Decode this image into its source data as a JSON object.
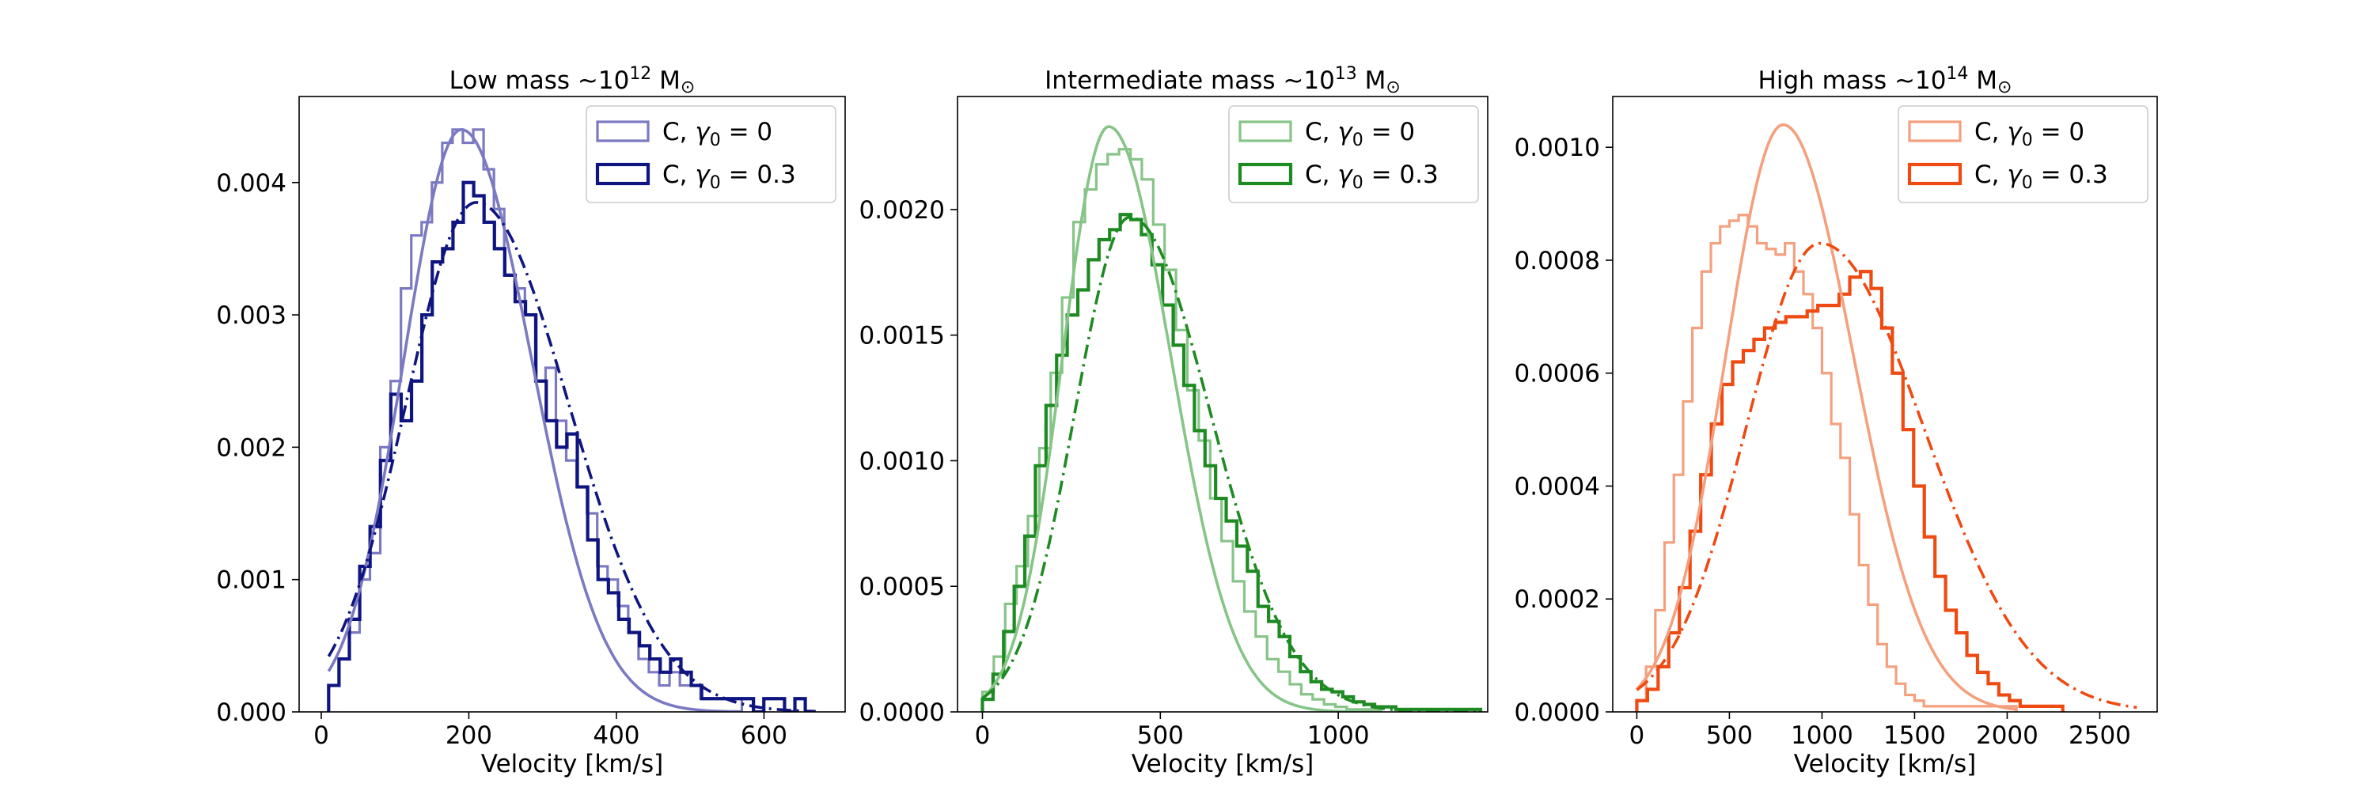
{
  "chart_data": [
    {
      "type": "histogram",
      "title": "Low mass",
      "title_mass": "∼10",
      "title_exp": "12",
      "title_unit": " M",
      "title_sun": "⊙",
      "xlabel": "Velocity [km/s]",
      "ylabel": "",
      "xlim": [
        -30,
        710
      ],
      "ylim": [
        0,
        0.00465
      ],
      "xticks": [
        0,
        200,
        400,
        600
      ],
      "xtick_labels": [
        "0",
        "200",
        "400",
        "600"
      ],
      "yticks": [
        0,
        0.001,
        0.002,
        0.003,
        0.004
      ],
      "ytick_labels": [
        "0.000",
        "0.001",
        "0.002",
        "0.003",
        "0.004"
      ],
      "legend": [
        {
          "label_prefix": "C, ",
          "label_math": "γ",
          "label_sub": "0",
          "label_suffix": " = 0",
          "color": "#7b79c1"
        },
        {
          "label_prefix": "C, ",
          "label_math": "γ",
          "label_sub": "0",
          "label_suffix": " = 0.3",
          "color": "#0f1580"
        }
      ],
      "series": [
        {
          "name": "C, γ0 = 0",
          "color": "#7b79c1",
          "hist_edges_range": [
            10,
            570
          ],
          "hist_values": [
            0.0002,
            0.0004,
            0.0006,
            0.001,
            0.0012,
            0.002,
            0.0025,
            0.0032,
            0.0036,
            0.0037,
            0.004,
            0.0043,
            0.0044,
            0.0043,
            0.0044,
            0.0041,
            0.0038,
            0.0033,
            0.0032,
            0.003,
            0.0025,
            0.0026,
            0.0022,
            0.0019,
            0.0017,
            0.0015,
            0.0011,
            0.001,
            0.0008,
            0.0006,
            0.0004,
            0.0003,
            0.0002,
            0.0003,
            0.0002,
            0.0002,
            0.0001,
            0.0001,
            0.0001,
            0.0001
          ],
          "fit": {
            "style": "solid",
            "peak_x": 190,
            "peak_y": 0.0044,
            "sigma_left": 78,
            "sigma_right": 95,
            "x_range": [
              10,
              570
            ]
          }
        },
        {
          "name": "C, γ0 = 0.3",
          "color": "#0f1580",
          "hist_edges_range": [
            10,
            670
          ],
          "hist_values": [
            0.0002,
            0.0004,
            0.0007,
            0.0011,
            0.0014,
            0.0019,
            0.0024,
            0.0022,
            0.0025,
            0.003,
            0.0034,
            0.0035,
            0.0037,
            0.004,
            0.0039,
            0.0037,
            0.0035,
            0.0033,
            0.0031,
            0.003,
            0.0025,
            0.0022,
            0.002,
            0.0021,
            0.0017,
            0.0013,
            0.001,
            0.0009,
            0.0007,
            0.0006,
            0.0005,
            0.0004,
            0.0003,
            0.0004,
            0.0003,
            0.0002,
            0.0001,
            0.0001,
            0.0001,
            0.0001,
            0.0001,
            0.0,
            0.0001,
            0.0001,
            0.0,
            0.0001,
            0.0
          ],
          "fit": {
            "style": "dashdot",
            "peak_x": 210,
            "peak_y": 0.00385,
            "sigma_left": 95,
            "sigma_right": 125,
            "x_range": [
              10,
              670
            ]
          }
        }
      ]
    },
    {
      "type": "histogram",
      "title": "Intermediate mass",
      "title_mass": "∼10",
      "title_exp": "13",
      "title_unit": " M",
      "title_sun": "⊙",
      "xlabel": "Velocity [km/s]",
      "ylabel": "",
      "xlim": [
        -70,
        1420
      ],
      "ylim": [
        0,
        0.00245
      ],
      "xticks": [
        0,
        500,
        1000
      ],
      "xtick_labels": [
        "0",
        "500",
        "1000"
      ],
      "yticks": [
        0,
        0.0005,
        0.001,
        0.0015,
        0.002
      ],
      "ytick_labels": [
        "0.0000",
        "0.0005",
        "0.0010",
        "0.0015",
        "0.0020"
      ],
      "legend": [
        {
          "label_prefix": "C, ",
          "label_math": "γ",
          "label_sub": "0",
          "label_suffix": " = 0",
          "color": "#86c487"
        },
        {
          "label_prefix": "C, ",
          "label_math": "γ",
          "label_sub": "0",
          "label_suffix": " = 0.3",
          "color": "#1e8a22"
        }
      ],
      "series": [
        {
          "name": "C, γ0 = 0",
          "color": "#86c487",
          "hist_edges_range": [
            0,
            1120
          ],
          "hist_values": [
            8e-05,
            0.00022,
            0.00043,
            0.00058,
            0.00078,
            0.00105,
            0.00135,
            0.00165,
            0.00195,
            0.00208,
            0.00218,
            0.00222,
            0.00224,
            0.0022,
            0.00212,
            0.00194,
            0.00176,
            0.00152,
            0.00128,
            0.00108,
            0.00085,
            0.00068,
            0.00052,
            0.0004,
            0.0003,
            0.00021,
            0.00016,
            0.00011,
            7e-05,
            5e-05,
            3e-05,
            2e-05,
            1e-05,
            1e-05,
            1e-05
          ],
          "fit": {
            "style": "solid",
            "peak_x": 355,
            "peak_y": 0.00233,
            "sigma_left": 130,
            "sigma_right": 175,
            "x_range": [
              0,
              1120
            ]
          }
        },
        {
          "name": "C, γ0 = 0.3",
          "color": "#1e8a22",
          "hist_edges_range": [
            0,
            1400
          ],
          "hist_values": [
            5e-05,
            0.00015,
            0.00032,
            0.0005,
            0.0007,
            0.00098,
            0.00122,
            0.00142,
            0.00158,
            0.00168,
            0.0018,
            0.00188,
            0.00192,
            0.00198,
            0.00196,
            0.0019,
            0.00178,
            0.00162,
            0.00146,
            0.0013,
            0.00112,
            0.00098,
            0.00085,
            0.00076,
            0.00066,
            0.00056,
            0.00042,
            0.00036,
            0.0003,
            0.00022,
            0.00016,
            0.00012,
            9e-05,
            8e-05,
            6e-05,
            4e-05,
            3e-05,
            2e-05,
            2e-05,
            1e-05,
            1e-05,
            1e-05,
            1e-05,
            1e-05,
            1e-05,
            1e-05,
            1e-05
          ],
          "fit": {
            "style": "dashdot",
            "peak_x": 415,
            "peak_y": 0.00197,
            "sigma_left": 155,
            "sigma_right": 225,
            "x_range": [
              0,
              1400
            ]
          }
        }
      ]
    },
    {
      "type": "histogram",
      "title": "High mass",
      "title_mass": "∼10",
      "title_exp": "14",
      "title_unit": " M",
      "title_sun": "⊙",
      "xlabel": "Velocity [km/s]",
      "ylabel": "",
      "xlim": [
        -130,
        2810
      ],
      "ylim": [
        0,
        0.00109
      ],
      "xticks": [
        0,
        500,
        1000,
        1500,
        2000,
        2500
      ],
      "xtick_labels": [
        "0",
        "500",
        "1000",
        "1500",
        "2000",
        "2500"
      ],
      "yticks": [
        0,
        0.0002,
        0.0004,
        0.0006,
        0.0008,
        0.001
      ],
      "ytick_labels": [
        "0.0000",
        "0.0002",
        "0.0004",
        "0.0006",
        "0.0008",
        "0.0010"
      ],
      "legend": [
        {
          "label_prefix": "C, ",
          "label_math": "γ",
          "label_sub": "0",
          "label_suffix": " = 0",
          "color": "#f4a07e"
        },
        {
          "label_prefix": "C, ",
          "label_math": "γ",
          "label_sub": "0",
          "label_suffix": " = 0.3",
          "color": "#ee4a12"
        }
      ],
      "series": [
        {
          "name": "C, γ0 = 0",
          "color": "#f4a07e",
          "hist_edges_range": [
            0,
            2050
          ],
          "hist_values": [
            2e-05,
            8e-05,
            0.00018,
            0.0003,
            0.00042,
            0.00055,
            0.00068,
            0.00078,
            0.00083,
            0.00086,
            0.00087,
            0.00088,
            0.00086,
            0.00083,
            0.00082,
            0.00081,
            0.00083,
            0.00078,
            0.00074,
            0.00068,
            0.0006,
            0.00051,
            0.00045,
            0.00035,
            0.00026,
            0.00019,
            0.00012,
            8e-05,
            5e-05,
            3e-05,
            2e-05,
            1e-05,
            1e-05,
            1e-05,
            1e-05,
            1e-05,
            1e-05,
            1e-05,
            1e-05,
            1e-05,
            1e-05
          ],
          "fit": {
            "style": "solid",
            "peak_x": 790,
            "peak_y": 0.00104,
            "sigma_left": 310,
            "sigma_right": 380,
            "x_range": [
              0,
              2050
            ]
          }
        },
        {
          "name": "C, γ0 = 0.3",
          "color": "#ee4a12",
          "hist_edges_range": [
            0,
            2300
          ],
          "hist_values": [
            2e-05,
            4e-05,
            8e-05,
            0.00014,
            0.00022,
            0.00032,
            0.00042,
            0.00051,
            0.00058,
            0.00062,
            0.00064,
            0.00066,
            0.00068,
            0.00069,
            0.0007,
            0.0007,
            0.00071,
            0.00072,
            0.00072,
            0.00074,
            0.00077,
            0.00078,
            0.00075,
            0.00068,
            0.0006,
            0.0005,
            0.0004,
            0.00031,
            0.00024,
            0.00018,
            0.00014,
            0.0001,
            7e-05,
            5e-05,
            3e-05,
            2e-05,
            1e-05,
            1e-05,
            1e-05,
            1e-05
          ],
          "fit": {
            "style": "dashdot",
            "peak_x": 990,
            "peak_y": 0.00083,
            "sigma_left": 400,
            "sigma_right": 560,
            "x_range": [
              0,
              2700
            ]
          }
        }
      ]
    }
  ]
}
